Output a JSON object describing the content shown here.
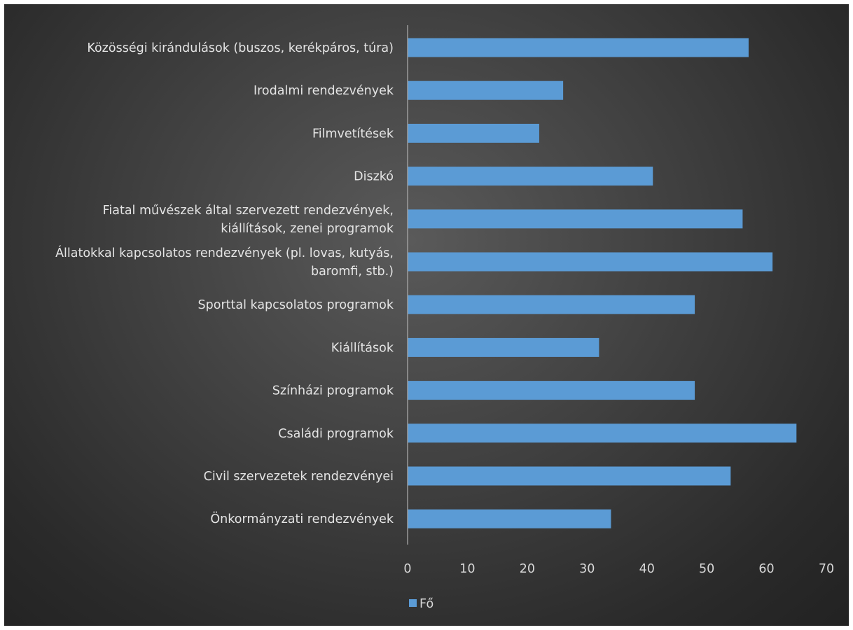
{
  "chart_data": {
    "type": "bar",
    "orientation": "horizontal",
    "categories": [
      "Közösségi kirándulások (buszos, kerékpáros, túra)",
      "Irodalmi rendezvények",
      "Filmvetítések",
      "Diszkó",
      "Fiatal művészek által szervezett rendezvények, kiállítások, zenei programok",
      "Állatokkal kapcsolatos rendezvények (pl. lovas, kutyás, baromfi, stb.)",
      "Sporttal kapcsolatos programok",
      "Kiállítások",
      "Színházi programok",
      "Családi programok",
      "Civil szervezetek rendezvényei",
      "Önkormányzati rendezvények"
    ],
    "category_lines": [
      [
        "Közösségi kirándulások (buszos, kerékpáros, túra)"
      ],
      [
        "Irodalmi rendezvények"
      ],
      [
        "Filmvetítések"
      ],
      [
        "Diszkó"
      ],
      [
        "Fiatal művészek által szervezett rendezvények,",
        "kiállítások, zenei programok"
      ],
      [
        "Állatokkal kapcsolatos rendezvények (pl. lovas, kutyás,",
        "baromfi, stb.)"
      ],
      [
        "Sporttal kapcsolatos programok"
      ],
      [
        "Kiállítások"
      ],
      [
        "Színházi programok"
      ],
      [
        "Családi programok"
      ],
      [
        "Civil szervezetek rendezvényei"
      ],
      [
        "Önkormányzati rendezvények"
      ]
    ],
    "series": [
      {
        "name": "Fő",
        "values": [
          57,
          26,
          22,
          41,
          56,
          61,
          48,
          32,
          48,
          65,
          54,
          34
        ]
      }
    ],
    "xlim": [
      0,
      70
    ],
    "xticks": [
      "0",
      "10",
      "20",
      "30",
      "40",
      "50",
      "60",
      "70"
    ],
    "grid": false,
    "legend": {
      "position": "bottom",
      "entries": [
        "Fő"
      ]
    },
    "colors": {
      "bar": "#5B9BD5",
      "axis": "#a8a8a8",
      "text": "#e4e4e4"
    }
  }
}
